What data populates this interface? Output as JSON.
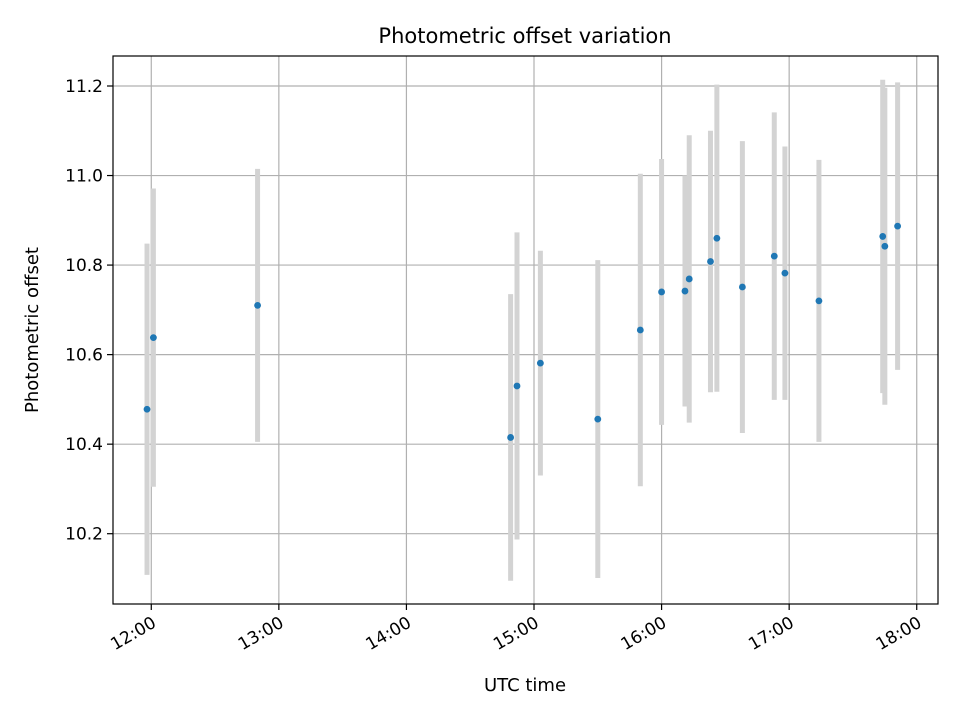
{
  "chart_data": {
    "type": "scatter",
    "title": "Photometric offset variation",
    "xlabel": "UTC time",
    "ylabel": "Photometric offset",
    "x_ticks": [
      "12:00",
      "13:00",
      "14:00",
      "15:00",
      "16:00",
      "17:00",
      "18:00"
    ],
    "y_ticks": [
      "10.2",
      "10.4",
      "10.6",
      "10.8",
      "11.0",
      "11.2"
    ],
    "xlim": [
      "11:42",
      "18:10"
    ],
    "ylim": [
      10.043,
      11.267
    ],
    "grid": true,
    "error_bar_color": "#d3d3d3",
    "point_color": "#1f77b4",
    "points": [
      {
        "time": "11:58",
        "y": 10.478,
        "yerr": 0.37
      },
      {
        "time": "12:01",
        "y": 10.638,
        "yerr": 0.333
      },
      {
        "time": "12:50",
        "y": 10.71,
        "yerr": 0.305
      },
      {
        "time": "14:49",
        "y": 10.415,
        "yerr": 0.32
      },
      {
        "time": "14:52",
        "y": 10.53,
        "yerr": 0.343
      },
      {
        "time": "15:03",
        "y": 10.581,
        "yerr": 0.251
      },
      {
        "time": "15:30",
        "y": 10.456,
        "yerr": 0.355
      },
      {
        "time": "15:50",
        "y": 10.655,
        "yerr": 0.349
      },
      {
        "time": "16:00",
        "y": 10.74,
        "yerr": 0.297
      },
      {
        "time": "16:11",
        "y": 10.742,
        "yerr": 0.258
      },
      {
        "time": "16:13",
        "y": 10.769,
        "yerr": 0.321
      },
      {
        "time": "16:23",
        "y": 10.808,
        "yerr": 0.292
      },
      {
        "time": "16:26",
        "y": 10.86,
        "yerr": 0.343
      },
      {
        "time": "16:38",
        "y": 10.751,
        "yerr": 0.326
      },
      {
        "time": "16:53",
        "y": 10.82,
        "yerr": 0.321
      },
      {
        "time": "16:58",
        "y": 10.782,
        "yerr": 0.283
      },
      {
        "time": "17:14",
        "y": 10.72,
        "yerr": 0.315
      },
      {
        "time": "17:44",
        "y": 10.864,
        "yerr": 0.35
      },
      {
        "time": "17:45",
        "y": 10.842,
        "yerr": 0.354
      },
      {
        "time": "17:51",
        "y": 10.887,
        "yerr": 0.321
      }
    ]
  }
}
